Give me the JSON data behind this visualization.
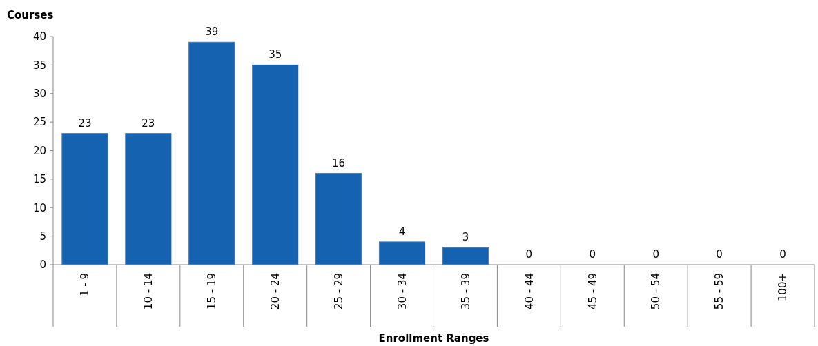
{
  "chart_data": {
    "type": "bar",
    "ylabel": "Courses",
    "xlabel": "Enrollment Ranges",
    "categories": [
      "1 - 9",
      "10 - 14",
      "15 - 19",
      "20 - 24",
      "25 - 29",
      "30 - 34",
      "35 - 39",
      "40 - 44",
      "45 - 49",
      "50 - 54",
      "55 - 59",
      "100+"
    ],
    "values": [
      23,
      23,
      39,
      35,
      16,
      4,
      3,
      0,
      0,
      0,
      0,
      0
    ],
    "color": "#1462b0",
    "ylim": [
      0,
      40
    ],
    "yticks": [
      0,
      5,
      10,
      15,
      20,
      25,
      30,
      35,
      40
    ],
    "data_labels": true
  }
}
